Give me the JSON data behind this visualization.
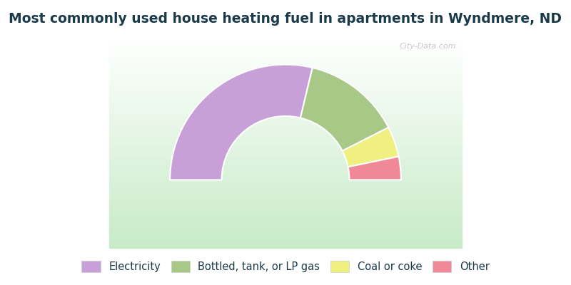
{
  "title": "Most commonly used house heating fuel in apartments in Wyndmere, ND",
  "title_color": "#1a3a4a",
  "title_fontsize": 13.5,
  "title_bg_color": "#00eeff",
  "chart_bg_top": "#f0faf0",
  "chart_bg_bottom": "#c8e8c8",
  "legend_bg_color": "#00eeff",
  "segments": [
    {
      "label": "Electricity",
      "value": 57.5,
      "color": "#c8a0d8"
    },
    {
      "label": "Bottled, tank, or LP gas",
      "value": 27.5,
      "color": "#a8c888"
    },
    {
      "label": "Coal or coke",
      "value": 8.5,
      "color": "#f0f080"
    },
    {
      "label": "Other",
      "value": 6.5,
      "color": "#f08898"
    }
  ],
  "legend_fontsize": 10.5,
  "watermark": "City-Data.com",
  "outer_r": 1.05,
  "inner_r": 0.58
}
